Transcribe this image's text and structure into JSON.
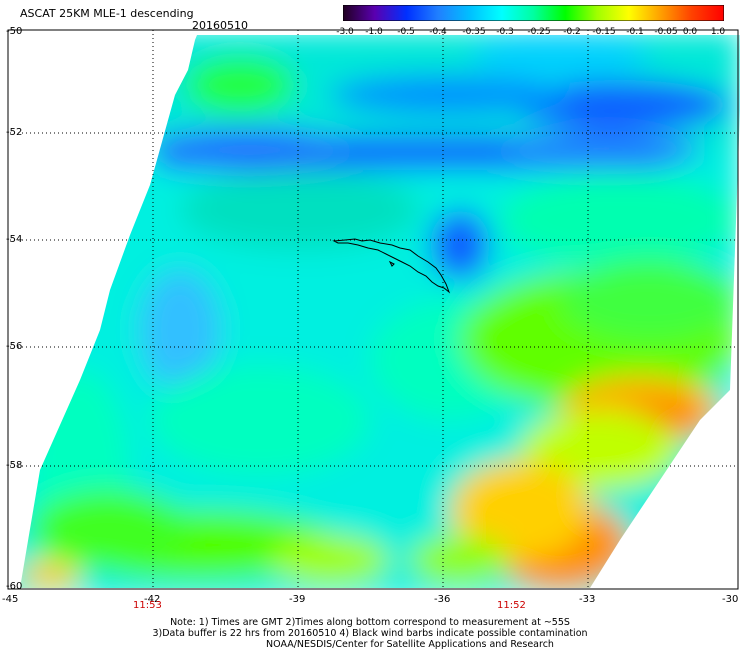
{
  "header": {
    "title": "ASCAT 25KM MLE-1 descending",
    "date": "20160510"
  },
  "colorbar": {
    "labels": [
      "-3.0",
      "-1.0",
      "-0.5",
      "-0.4",
      "-0.35",
      "-0.3",
      "-0.25",
      "-0.2",
      "-0.15",
      "-0.1",
      "-0.05",
      "0.0",
      "1.0"
    ],
    "colors": [
      "#200020",
      "#5a00b0",
      "#0030ff",
      "#2080ff",
      "#00c0ff",
      "#00ffff",
      "#00ffa0",
      "#00ff00",
      "#a0ff00",
      "#ffff00",
      "#ffa000",
      "#ff4000",
      "#ff0000"
    ]
  },
  "map": {
    "lat_labels": [
      "-50",
      "-52",
      "-54",
      "-56",
      "-58",
      "-60"
    ],
    "lon_labels": [
      "-45",
      "-42",
      "-39",
      "-36",
      "-33",
      "-30"
    ],
    "times": [
      "11:53",
      "11:52"
    ],
    "island": "South Georgia"
  },
  "notes": [
    "Note: 1) Times are GMT 2)Times along bottom correspond to measurement at ~55S",
    "3)Data buffer is 22 hrs from 20160510 4) Black wind barbs indicate possible contamination",
    "NOAA/NESDIS/Center for Satellite Applications and Research"
  ]
}
